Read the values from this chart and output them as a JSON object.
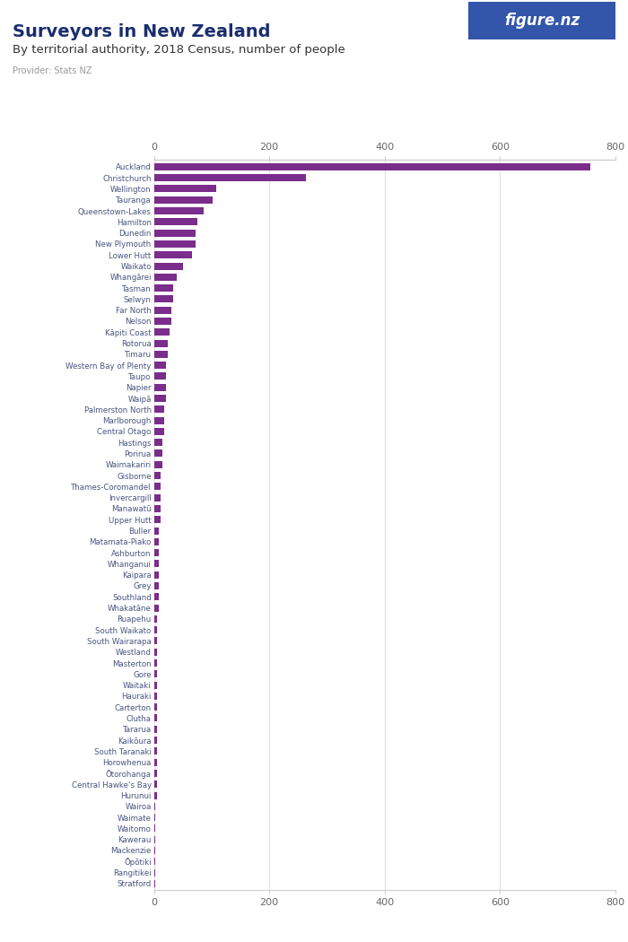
{
  "title": "Surveyors in New Zealand",
  "subtitle": "By territorial authority, 2018 Census, number of people",
  "provider": "Provider: Stats NZ",
  "bar_color": "#7b2d8b",
  "label_color": "#4a5580",
  "background_color": "#ffffff",
  "xlim": [
    0,
    800
  ],
  "xticks": [
    0,
    200,
    400,
    600,
    800
  ],
  "categories": [
    "Auckland",
    "Christchurch",
    "Wellington",
    "Tauranga",
    "Queenstown-Lakes",
    "Hamilton",
    "Dunedin",
    "New Plymouth",
    "Lower Hutt",
    "Waikato",
    "Whangārei",
    "Tasman",
    "Selwyn",
    "Far North",
    "Nelson",
    "Kāpiti Coast",
    "Rotorua",
    "Timaru",
    "Western Bay of Plenty",
    "Taupo",
    "Napier",
    "Waipā",
    "Palmerston North",
    "Marlborough",
    "Central Otago",
    "Hastings",
    "Porirua",
    "Waimakariri",
    "Gisborne",
    "Thames-Coromandel",
    "Invercargill",
    "Manawatū",
    "Upper Hutt",
    "Buller",
    "Matamata-Piako",
    "Ashburton",
    "Whanganui",
    "Kaipara",
    "Grey",
    "Southland",
    "Whakatāne",
    "Ruapehu",
    "South Waikato",
    "South Wairarapa",
    "Westland",
    "Masterton",
    "Gore",
    "Waitaki",
    "Hauraki",
    "Carterton",
    "Clutha",
    "Tararua",
    "Kaikōura",
    "South Taranaki",
    "Horowhenua",
    "Ōtorohanga",
    "Central Hawke's Bay",
    "Hurunui",
    "Wairoa",
    "Waimate",
    "Waitomo",
    "Kawerau",
    "Mackenzie",
    "Ōpōtiki",
    "Rangitikei",
    "Stratford"
  ],
  "values": [
    756,
    264,
    108,
    102,
    87,
    75,
    72,
    72,
    66,
    51,
    39,
    33,
    33,
    30,
    30,
    27,
    24,
    24,
    21,
    21,
    21,
    21,
    18,
    18,
    18,
    15,
    15,
    15,
    12,
    12,
    12,
    12,
    12,
    9,
    9,
    9,
    9,
    9,
    9,
    9,
    9,
    6,
    6,
    6,
    6,
    6,
    6,
    6,
    6,
    6,
    6,
    6,
    6,
    6,
    6,
    6,
    6,
    6,
    3,
    3,
    3,
    3,
    3,
    3,
    3,
    3
  ],
  "figure_nz_bg": "#3355aa",
  "title_color": "#1a2e6e",
  "subtitle_color": "#333333",
  "provider_color": "#999999",
  "grid_color": "#e0e0e0",
  "tick_label_color": "#666666",
  "spine_color": "#cccccc"
}
